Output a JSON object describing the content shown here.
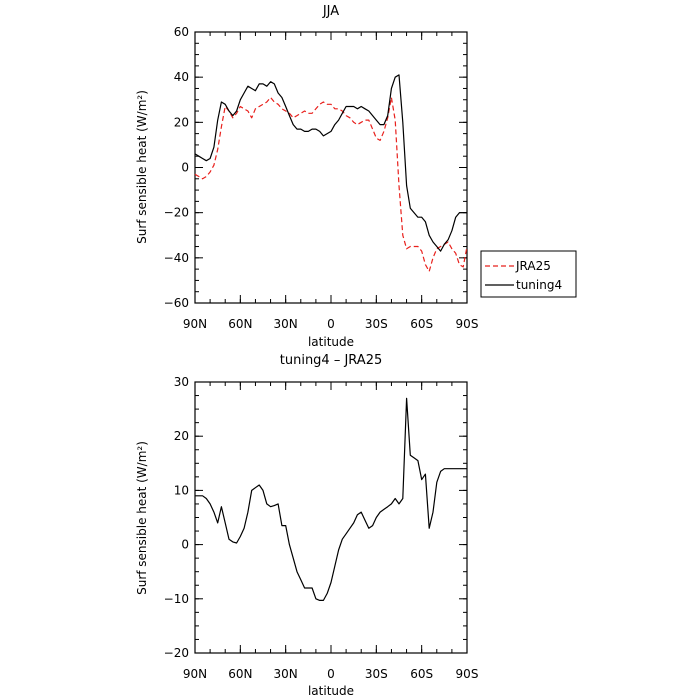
{
  "chart_data": [
    {
      "type": "line",
      "title": "JJA",
      "xlabel": "latitude",
      "ylabel": "Surf sensible heat (W/m²)",
      "x_ticks": [
        {
          "value": -90,
          "label": "90N"
        },
        {
          "value": -60,
          "label": "60N"
        },
        {
          "value": -30,
          "label": "30N"
        },
        {
          "value": 0,
          "label": "0"
        },
        {
          "value": 30,
          "label": "30S"
        },
        {
          "value": 60,
          "label": "60S"
        },
        {
          "value": 90,
          "label": "90S"
        }
      ],
      "xlim": [
        -90,
        90
      ],
      "ylim": [
        -60,
        60
      ],
      "y_ticks": [
        -60,
        -40,
        -20,
        0,
        20,
        40,
        60
      ],
      "legend_position": "right",
      "series": [
        {
          "name": "JRA25",
          "color": "#e8201c",
          "dash": "dashed",
          "x": [
            -90,
            -87.5,
            -85,
            -82.5,
            -80,
            -77.5,
            -75,
            -72.5,
            -70,
            -67.5,
            -65,
            -62.5,
            -60,
            -57.5,
            -55,
            -52.5,
            -50,
            -47.5,
            -45,
            -42.5,
            -40,
            -37.5,
            -35,
            -32.5,
            -30,
            -27.5,
            -25,
            -22.5,
            -20,
            -17.5,
            -15,
            -12.5,
            -10,
            -7.5,
            -5,
            -2.5,
            0,
            2.5,
            5,
            7.5,
            10,
            12.5,
            15,
            17.5,
            20,
            22.5,
            25,
            27.5,
            30,
            32.5,
            35,
            37.5,
            40,
            42.5,
            45,
            47.5,
            50,
            52.5,
            55,
            57.5,
            60,
            62.5,
            65,
            67.5,
            70,
            72.5,
            75,
            77.5,
            80,
            82.5,
            85,
            87.5,
            90
          ],
          "values": [
            -3,
            -4,
            -5,
            -4,
            -2,
            1,
            8,
            18,
            27,
            25,
            22,
            24,
            27,
            26,
            25,
            22,
            26,
            27,
            28,
            29,
            31,
            29,
            28,
            26,
            25,
            24,
            22,
            23,
            24,
            25,
            24,
            24,
            26,
            28,
            29,
            28,
            28,
            26,
            26,
            25,
            23,
            22,
            20,
            19,
            20,
            21,
            21,
            17,
            13,
            12,
            16,
            22,
            31,
            21,
            -8,
            -30,
            -36,
            -35,
            -35,
            -35,
            -37,
            -43,
            -46,
            -40,
            -36,
            -35,
            -34,
            -33,
            -36,
            -38,
            -43,
            -44,
            -35
          ],
          "values_note": "x positions follow 2.5° steps; values read from plot"
        },
        {
          "name": "tuning4",
          "color": "#000000",
          "dash": "solid",
          "x": [
            -90,
            -87.5,
            -85,
            -82.5,
            -80,
            -77.5,
            -75,
            -72.5,
            -70,
            -67.5,
            -65,
            -62.5,
            -60,
            -57.5,
            -55,
            -52.5,
            -50,
            -47.5,
            -45,
            -42.5,
            -40,
            -37.5,
            -35,
            -32.5,
            -30,
            -27.5,
            -25,
            -22.5,
            -20,
            -17.5,
            -15,
            -12.5,
            -10,
            -7.5,
            -5,
            -2.5,
            0,
            2.5,
            5,
            7.5,
            10,
            12.5,
            15,
            17.5,
            20,
            22.5,
            25,
            27.5,
            30,
            32.5,
            35,
            37.5,
            40,
            42.5,
            45,
            47.5,
            50,
            52.5,
            55,
            57.5,
            60,
            62.5,
            65,
            67.5,
            70,
            72.5,
            75,
            77.5,
            80,
            82.5,
            85,
            87.5,
            90
          ],
          "values": [
            6,
            5,
            4,
            3,
            4,
            9,
            21,
            29,
            28,
            25,
            23,
            25,
            30,
            33,
            36,
            35,
            34,
            37,
            37,
            36,
            38,
            37,
            33,
            31,
            27,
            23,
            19,
            17,
            17,
            16,
            16,
            17,
            17,
            16,
            14,
            15,
            16,
            19,
            21,
            24,
            27,
            27,
            27,
            26,
            27,
            26,
            25,
            23,
            21,
            19,
            19,
            23,
            35,
            40,
            41,
            20,
            -8,
            -18,
            -20,
            -22,
            -22,
            -24,
            -30,
            -33,
            -35,
            -37,
            -34,
            -32,
            -28,
            -22,
            -20,
            -20,
            -20
          ]
        }
      ]
    },
    {
      "type": "line",
      "title": "tuning4 – JRA25",
      "xlabel": "latitude",
      "ylabel": "Surf sensible heat (W/m²)",
      "x_ticks": [
        {
          "value": -90,
          "label": "90N"
        },
        {
          "value": -60,
          "label": "60N"
        },
        {
          "value": -30,
          "label": "30N"
        },
        {
          "value": 0,
          "label": "0"
        },
        {
          "value": 30,
          "label": "30S"
        },
        {
          "value": 60,
          "label": "60S"
        },
        {
          "value": 90,
          "label": "90S"
        }
      ],
      "xlim": [
        -90,
        90
      ],
      "ylim": [
        -20,
        30
      ],
      "y_ticks": [
        -20,
        -10,
        0,
        10,
        20,
        30
      ],
      "series": [
        {
          "color": "#000000",
          "dash": "solid",
          "x": [
            -90,
            -87.5,
            -85,
            -82.5,
            -80,
            -77.5,
            -75,
            -72.5,
            -70,
            -67.5,
            -65,
            -62.5,
            -60,
            -57.5,
            -55,
            -52.5,
            -50,
            -47.5,
            -45,
            -42.5,
            -40,
            -37.5,
            -35,
            -32.5,
            -30,
            -27.5,
            -25,
            -22.5,
            -20,
            -17.5,
            -15,
            -12.5,
            -10,
            -7.5,
            -5,
            -2.5,
            0,
            2.5,
            5,
            7.5,
            10,
            12.5,
            15,
            17.5,
            20,
            22.5,
            25,
            27.5,
            30,
            32.5,
            35,
            37.5,
            40,
            42.5,
            45,
            47.5,
            50,
            52.5,
            55,
            57.5,
            60,
            62.5,
            65,
            67.5,
            70,
            72.5,
            75,
            77.5,
            80,
            82.5,
            85,
            87.5,
            90
          ],
          "values": [
            9,
            9,
            9,
            8.5,
            7.5,
            6,
            4,
            7,
            4,
            1,
            0.5,
            0.3,
            1.5,
            3,
            6,
            10,
            10.5,
            11,
            10,
            7.5,
            7,
            7.2,
            7.5,
            3.5,
            3.5,
            0,
            -2.5,
            -5,
            -6.5,
            -8,
            -8,
            -8,
            -10,
            -10.3,
            -10.3,
            -9,
            -7,
            -4,
            -1,
            1,
            2,
            3,
            4,
            5.5,
            6,
            4.5,
            3,
            3.5,
            5,
            6,
            6.5,
            7,
            7.5,
            8.5,
            7.5,
            8.5,
            27,
            16.5,
            16,
            15.5,
            12,
            13,
            3,
            6,
            11.5,
            13.5,
            14,
            14,
            14,
            14,
            14,
            14,
            14
          ]
        }
      ]
    }
  ]
}
